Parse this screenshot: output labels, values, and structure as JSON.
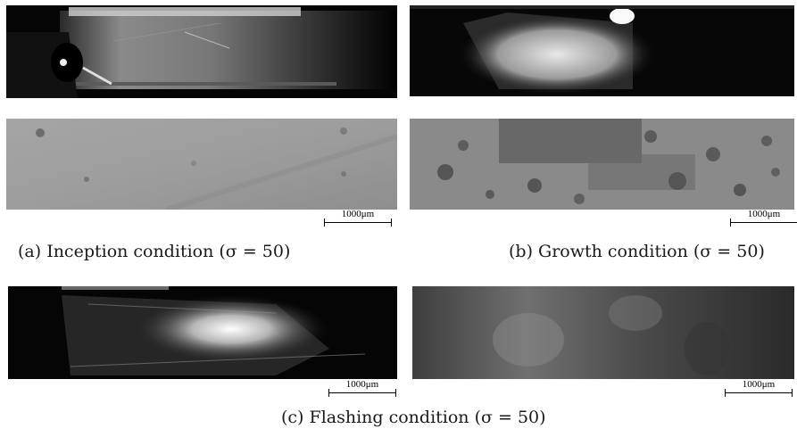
{
  "captions": {
    "a": "(a) Inception condition (σ = 50)",
    "b": "(b) Growth condition (σ = 50)",
    "c": "(c) Flashing condition (σ = 50)"
  },
  "scale_bar_label": "1000μm"
}
